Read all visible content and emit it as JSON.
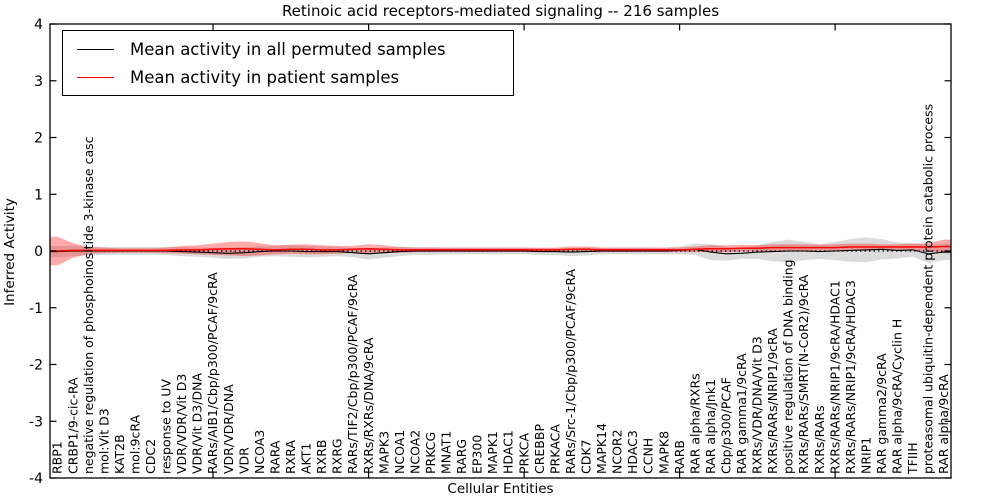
{
  "figure": {
    "title": "Retinoic acid receptors-mediated signaling -- 216 samples",
    "xlabel": "Cellular Entities",
    "ylabel": "Inferred Activity"
  },
  "legend": {
    "entries": [
      {
        "label": "Mean activity in all permuted samples",
        "color": "#000000"
      },
      {
        "label": "Mean activity in patient samples",
        "color": "#ff0000"
      }
    ],
    "position": "upper left"
  },
  "chart_data": {
    "type": "line",
    "title": "Retinoic acid receptors-mediated signaling -- 216 samples",
    "xlabel": "Cellular Entities",
    "ylabel": "Inferred Activity",
    "ylim": [
      -4,
      4
    ],
    "yticks": [
      -4,
      -3,
      -2,
      -1,
      0,
      1,
      2,
      3,
      4
    ],
    "xtick_major_indices": [
      10,
      20,
      30,
      40,
      50
    ],
    "grid": false,
    "zero_line": {
      "y": 0,
      "style": "dotted",
      "color": "#000000"
    },
    "legend_position": "upper left",
    "categories": [
      "RBP1",
      "CRBP1/9-cic-RA",
      "negative regulation of phosphoinositide 3-kinase casc",
      "mol:Vit D3",
      "KAT2B",
      "mol:9cRA",
      "CDC2",
      "response to UV",
      "VDR/VDR/Vit D3",
      "VDR/Vit D3/DNA",
      "RARs/AIB1/Cbp/p300/PCAF/9cRA",
      "VDR/VDR/DNA",
      "VDR",
      "NCOA3",
      "RARA",
      "RXRA",
      "AKT1",
      "RXRB",
      "RXRG",
      "RARs/TIF2/Cbp/p300/PCAF/9cRA",
      "RXRs/RXRs/DNA/9cRA",
      "MAPK3",
      "NCOA1",
      "NCOA2",
      "PRKCG",
      "MNAT1",
      "RARG",
      "EP300",
      "MAPK1",
      "HDAC1",
      "PRKCA",
      "CREBBP",
      "PRKACA",
      "RARs/Src-1/Cbp/p300/PCAF/9cRA",
      "CDK7",
      "MAPK14",
      "NCOR2",
      "HDAC3",
      "CCNH",
      "MAPK8",
      "RARB",
      "RAR alpha/RXRs",
      "RAR alpha/Jnk1",
      "Cbp/p300/PCAF",
      "RAR gamma1/9cRA",
      "RXRs/VDR/DNA/Vit D3",
      "RXRs/RARs/NRIP1/9cRA",
      "positive regulation of DNA binding",
      "RXRs/RARs/SMRT(N-CoR2)/9cRA",
      "RXRs/RARs",
      "RXRs/RARs/NRIP1/9cRA/HDAC1",
      "RXRs/RARs/NRIP1/9cRA/HDAC3",
      "NRIP1",
      "RAR gamma2/9cRA",
      "RAR alpha/9cRA/Cyclin H",
      "TFIIH",
      "proteasomal ubiquitin-dependent protein catabolic process",
      "RAR alpha/9cRA"
    ],
    "series": [
      {
        "name": "Mean activity in all permuted samples",
        "color": "#000000",
        "band_color": "#999999",
        "band_opacity": 0.35,
        "values": [
          -0.01,
          0,
          0,
          0,
          0,
          0,
          0,
          0,
          -0.01,
          -0.02,
          -0.03,
          -0.04,
          -0.03,
          -0.01,
          0,
          0,
          -0.01,
          -0.01,
          -0.01,
          -0.03,
          -0.05,
          -0.03,
          -0.01,
          0,
          0,
          0,
          0,
          0,
          0,
          0,
          0,
          -0.01,
          -0.01,
          -0.02,
          -0.01,
          0,
          0,
          0,
          0,
          0,
          0.01,
          0.03,
          -0.02,
          -0.05,
          -0.04,
          -0.02,
          -0.01,
          0,
          0,
          -0.01,
          0,
          0.01,
          0.02,
          0.03,
          0.01,
          0.02,
          -0.05,
          -0.02
        ],
        "band_halfwidth": [
          0.1,
          0.09,
          0.08,
          0.07,
          0.07,
          0.07,
          0.07,
          0.07,
          0.08,
          0.08,
          0.09,
          0.1,
          0.1,
          0.09,
          0.09,
          0.1,
          0.1,
          0.09,
          0.08,
          0.08,
          0.1,
          0.09,
          0.08,
          0.07,
          0.07,
          0.06,
          0.06,
          0.06,
          0.06,
          0.06,
          0.06,
          0.06,
          0.06,
          0.07,
          0.07,
          0.06,
          0.06,
          0.06,
          0.06,
          0.06,
          0.07,
          0.1,
          0.14,
          0.12,
          0.1,
          0.12,
          0.17,
          0.2,
          0.16,
          0.13,
          0.16,
          0.2,
          0.22,
          0.18,
          0.14,
          0.12,
          0.16,
          0.14
        ]
      },
      {
        "name": "Mean activity in patient samples",
        "color": "#ff0000",
        "band_color": "#ff0000",
        "band_opacity": 0.33,
        "values": [
          0,
          0.01,
          0.01,
          0.01,
          0.01,
          0.01,
          0.01,
          0.01,
          0.02,
          0.02,
          0.03,
          0.04,
          0.04,
          0.03,
          0.02,
          0.03,
          0.03,
          0.02,
          0.02,
          0.03,
          0.04,
          0.03,
          0.02,
          0.02,
          0.02,
          0.02,
          0.02,
          0.02,
          0.02,
          0.02,
          0.02,
          0.02,
          0.02,
          0.03,
          0.03,
          0.02,
          0.02,
          0.02,
          0.02,
          0.02,
          0.02,
          0.03,
          0.04,
          0.04,
          0.05,
          0.05,
          0.06,
          0.06,
          0.06,
          0.06,
          0.06,
          0.07,
          0.07,
          0.07,
          0.07,
          0.07,
          0.07,
          0.08
        ],
        "band_halfwidth": [
          0.25,
          0.13,
          0.06,
          0.05,
          0.04,
          0.04,
          0.04,
          0.05,
          0.07,
          0.08,
          0.1,
          0.12,
          0.13,
          0.11,
          0.08,
          0.08,
          0.09,
          0.08,
          0.07,
          0.06,
          0.08,
          0.07,
          0.05,
          0.04,
          0.04,
          0.04,
          0.04,
          0.04,
          0.04,
          0.04,
          0.04,
          0.04,
          0.04,
          0.05,
          0.05,
          0.04,
          0.04,
          0.04,
          0.04,
          0.04,
          0.04,
          0.05,
          0.06,
          0.06,
          0.06,
          0.05,
          0.06,
          0.06,
          0.06,
          0.05,
          0.06,
          0.06,
          0.06,
          0.05,
          0.05,
          0.06,
          0.07,
          0.12
        ]
      }
    ]
  }
}
